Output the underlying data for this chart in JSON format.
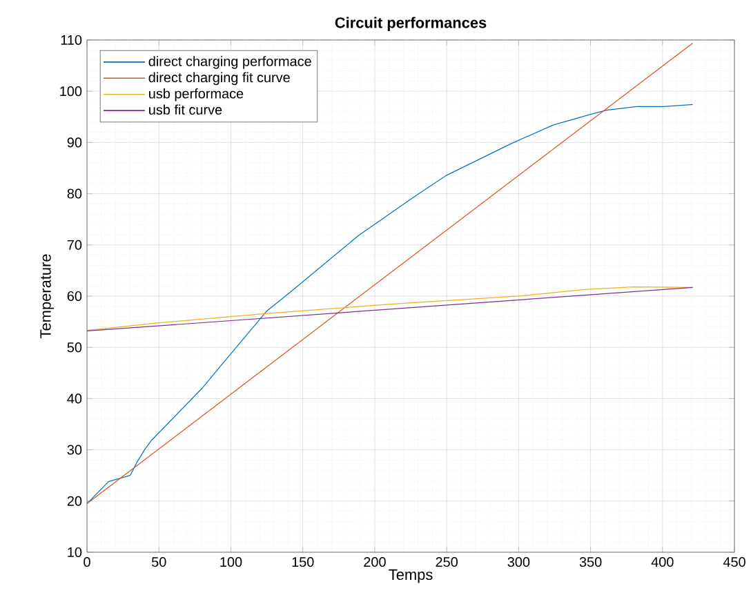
{
  "chart_data": {
    "type": "line",
    "title": "Circuit performances",
    "xlabel": "Temps",
    "ylabel": "Temperature",
    "xlim": [
      0,
      450
    ],
    "ylim": [
      10,
      110
    ],
    "xticks": [
      0,
      50,
      100,
      150,
      200,
      250,
      300,
      350,
      400,
      450
    ],
    "yticks": [
      10,
      20,
      30,
      40,
      50,
      60,
      70,
      80,
      90,
      100,
      110
    ],
    "grid": true,
    "legend": "top left",
    "series": [
      {
        "name": "direct charging performace",
        "color": "#0072bd",
        "x": [
          0,
          15,
          30,
          35,
          40,
          45,
          80,
          90,
          125,
          141,
          189,
          228,
          250,
          295,
          324,
          350,
          361,
          382,
          401,
          421
        ],
        "values": [
          19.5,
          23.8,
          25,
          27.7,
          30,
          31.9,
          42,
          45.4,
          57.1,
          60.7,
          71.9,
          79.5,
          83.6,
          89.8,
          93.4,
          95.5,
          96.3,
          97,
          97,
          97.4
        ]
      },
      {
        "name": "direct charging fit curve",
        "color": "#d95319",
        "x": [
          0,
          421
        ],
        "values": [
          19.5,
          109.4
        ]
      },
      {
        "name": "usb performace",
        "color": "#edb120",
        "x": [
          0,
          50,
          125,
          209,
          300,
          346,
          380,
          421
        ],
        "values": [
          53.3,
          54.8,
          56.6,
          58.4,
          60,
          61.3,
          61.8,
          61.7
        ]
      },
      {
        "name": "usb fit curve",
        "color": "#7e2f8e",
        "x": [
          0,
          421
        ],
        "values": [
          53.2,
          61.7
        ]
      }
    ]
  }
}
